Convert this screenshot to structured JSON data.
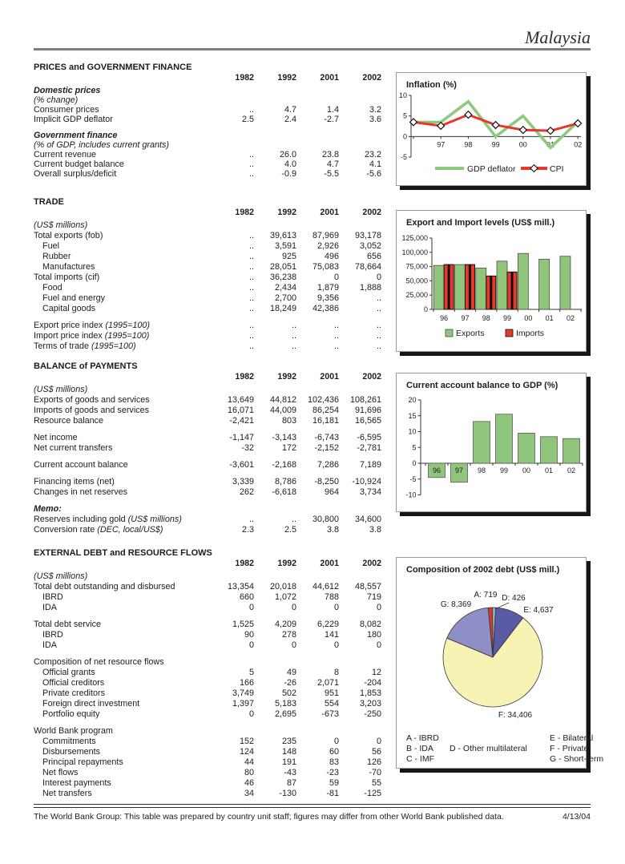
{
  "header": {
    "country": "Malaysia"
  },
  "years": [
    "1982",
    "1992",
    "2001",
    "2002"
  ],
  "sections": [
    {
      "title": "PRICES and GOVERNMENT FINANCE",
      "rows": [
        {
          "style": "group",
          "label": "Domestic prices"
        },
        {
          "style": "subnote",
          "label": "(% change)"
        },
        {
          "style": "row",
          "label": "Consumer prices",
          "values": [
            "..",
            "4.7",
            "1.4",
            "3.2"
          ]
        },
        {
          "style": "row",
          "label": "Implicit GDP deflator",
          "values": [
            "2.5",
            "2.4",
            "-2.7",
            "3.6"
          ]
        },
        {
          "style": "group",
          "label": "Government finance",
          "gap": true
        },
        {
          "style": "subnote",
          "label": "(% of GDP, includes current grants)"
        },
        {
          "style": "row",
          "label": "Current revenue",
          "values": [
            "..",
            "26.0",
            "23.8",
            "23.2"
          ]
        },
        {
          "style": "row",
          "label": "Current budget balance",
          "values": [
            "..",
            "4.0",
            "4.7",
            "4.1"
          ]
        },
        {
          "style": "row",
          "label": "Overall surplus/deficit",
          "values": [
            "..",
            "-0.9",
            "-5.5",
            "-5.6"
          ]
        }
      ]
    },
    {
      "title": "TRADE",
      "rows": [
        {
          "style": "subnote",
          "label": "(US$ millions)"
        },
        {
          "style": "row",
          "label": "Total exports (fob)",
          "values": [
            "..",
            "39,613",
            "87,969",
            "93,178"
          ]
        },
        {
          "style": "indent",
          "label": "Fuel",
          "values": [
            "..",
            "3,591",
            "2,926",
            "3,052"
          ]
        },
        {
          "style": "indent",
          "label": "Rubber",
          "values": [
            "..",
            "925",
            "496",
            "656"
          ]
        },
        {
          "style": "indent",
          "label": "Manufactures",
          "values": [
            "..",
            "28,051",
            "75,083",
            "78,664"
          ]
        },
        {
          "style": "row",
          "label": "Total imports (cif)",
          "values": [
            "..",
            "36,238",
            "0",
            "0"
          ]
        },
        {
          "style": "indent",
          "label": "Food",
          "values": [
            "..",
            "2,434",
            "1,879",
            "1,888"
          ]
        },
        {
          "style": "indent",
          "label": "Fuel and energy",
          "values": [
            "..",
            "2,700",
            "9,356",
            ".."
          ]
        },
        {
          "style": "indent",
          "label": "Capital goods",
          "values": [
            "..",
            "18,249",
            "42,386",
            ".."
          ]
        },
        {
          "style": "row",
          "label": "Export price index",
          "note": "(1995=100)",
          "values": [
            "..",
            "..",
            "..",
            ".."
          ],
          "gap": true
        },
        {
          "style": "row",
          "label": "Import price index",
          "note": "(1995=100)",
          "values": [
            "..",
            "..",
            "..",
            ".."
          ]
        },
        {
          "style": "row",
          "label": "Terms of trade",
          "note": "(1995=100)",
          "values": [
            "..",
            "..",
            "..",
            ".."
          ]
        }
      ]
    },
    {
      "title": "BALANCE of PAYMENTS",
      "rows": [
        {
          "style": "subnote",
          "label": "(US$ millions)"
        },
        {
          "style": "row",
          "label": "Exports of goods and services",
          "values": [
            "13,649",
            "44,812",
            "102,436",
            "108,261"
          ]
        },
        {
          "style": "row",
          "label": "Imports of goods and services",
          "values": [
            "16,071",
            "44,009",
            "86,254",
            "91,696"
          ]
        },
        {
          "style": "row",
          "label": "Resource balance",
          "values": [
            "-2,421",
            "803",
            "16,181",
            "16,565"
          ]
        },
        {
          "style": "row",
          "label": "Net income",
          "values": [
            "-1,147",
            "-3,143",
            "-6,743",
            "-6,595"
          ],
          "gap": true
        },
        {
          "style": "row",
          "label": "Net current transfers",
          "values": [
            "-32",
            "172",
            "-2,152",
            "-2,781"
          ]
        },
        {
          "style": "row",
          "label": "Current account balance",
          "values": [
            "-3,601",
            "-2,168",
            "7,286",
            "7,189"
          ],
          "gap": true
        },
        {
          "style": "row",
          "label": "Financing items (net)",
          "values": [
            "3,339",
            "8,786",
            "-8,250",
            "-10,924"
          ],
          "gap": true
        },
        {
          "style": "row",
          "label": "Changes in net reserves",
          "values": [
            "262",
            "-6,618",
            "964",
            "3,734"
          ]
        },
        {
          "style": "memo",
          "label": "Memo:",
          "gap": true
        },
        {
          "style": "row",
          "label": "Reserves including gold",
          "note": "(US$ millions)",
          "values": [
            "..",
            "..",
            "30,800",
            "34,600"
          ]
        },
        {
          "style": "row",
          "label": "Conversion rate",
          "note": "(DEC, local/US$)",
          "values": [
            "2.3",
            "2.5",
            "3.8",
            "3.8"
          ]
        }
      ]
    },
    {
      "title": "EXTERNAL DEBT and RESOURCE FLOWS",
      "rows": [
        {
          "style": "subnote",
          "label": "(US$ millions)"
        },
        {
          "style": "row",
          "label": "Total debt outstanding and disbursed",
          "values": [
            "13,354",
            "20,018",
            "44,612",
            "48,557"
          ]
        },
        {
          "style": "indent",
          "label": "IBRD",
          "values": [
            "660",
            "1,072",
            "788",
            "719"
          ]
        },
        {
          "style": "indent",
          "label": "IDA",
          "values": [
            "0",
            "0",
            "0",
            "0"
          ]
        },
        {
          "style": "row",
          "label": "Total debt service",
          "values": [
            "1,525",
            "4,209",
            "6,229",
            "8,082"
          ],
          "gap": true
        },
        {
          "style": "indent",
          "label": "IBRD",
          "values": [
            "90",
            "278",
            "141",
            "180"
          ]
        },
        {
          "style": "indent",
          "label": "IDA",
          "values": [
            "0",
            "0",
            "0",
            "0"
          ]
        },
        {
          "style": "row",
          "label": "Composition of net resource flows",
          "gap": true
        },
        {
          "style": "indent",
          "label": "Official grants",
          "values": [
            "5",
            "49",
            "8",
            "12"
          ]
        },
        {
          "style": "indent",
          "label": "Official creditors",
          "values": [
            "166",
            "-26",
            "2,071",
            "-204"
          ]
        },
        {
          "style": "indent",
          "label": "Private creditors",
          "values": [
            "3,749",
            "502",
            "951",
            "1,853"
          ]
        },
        {
          "style": "indent",
          "label": "Foreign direct investment",
          "values": [
            "1,397",
            "5,183",
            "554",
            "3,203"
          ]
        },
        {
          "style": "indent",
          "label": "Portfolio equity",
          "values": [
            "0",
            "2,695",
            "-673",
            "-250"
          ]
        },
        {
          "style": "row",
          "label": "World Bank program",
          "gap": true
        },
        {
          "style": "indent",
          "label": "Commitments",
          "values": [
            "152",
            "235",
            "0",
            "0"
          ]
        },
        {
          "style": "indent",
          "label": "Disbursements",
          "values": [
            "124",
            "148",
            "60",
            "56"
          ]
        },
        {
          "style": "indent",
          "label": "Principal repayments",
          "values": [
            "44",
            "191",
            "83",
            "126"
          ]
        },
        {
          "style": "indent",
          "label": "Net flows",
          "values": [
            "80",
            "-43",
            "-23",
            "-70"
          ]
        },
        {
          "style": "indent",
          "label": "Interest payments",
          "values": [
            "46",
            "87",
            "59",
            "55"
          ]
        },
        {
          "style": "indent",
          "label": "Net transfers",
          "values": [
            "34",
            "-130",
            "-81",
            "-125"
          ]
        }
      ]
    }
  ],
  "chart_data": [
    {
      "id": "inflation",
      "type": "line",
      "title": "Inflation (%)",
      "x_labels": [
        "",
        "97",
        "98",
        "99",
        "00",
        "01",
        "02"
      ],
      "ylim": [
        -5,
        10
      ],
      "yticks": [
        10,
        5,
        0,
        -5
      ],
      "grid": false,
      "legend_position": "bottom",
      "series": [
        {
          "name": "GDP deflator",
          "color": "#8CCB7B",
          "values": [
            3.5,
            3.5,
            8.5,
            0.0,
            5.0,
            -2.7,
            3.6
          ]
        },
        {
          "name": "CPI",
          "color": "#E6382D",
          "marker": "diamond",
          "values": [
            3.5,
            2.6,
            5.3,
            2.8,
            1.6,
            1.4,
            3.2
          ]
        }
      ]
    },
    {
      "id": "trade",
      "type": "bar",
      "title": "Export and Import levels (US$ mill.)",
      "categories": [
        "96",
        "97",
        "98",
        "99",
        "00",
        "01",
        "02"
      ],
      "ylim": [
        0,
        125000
      ],
      "ytick_labels": [
        "125,000",
        "100,000",
        "75,000",
        "50,000",
        "25,000",
        "0"
      ],
      "grid": false,
      "legend_position": "bottom",
      "series": [
        {
          "name": "Exports",
          "color": "#90C67C",
          "values": [
            77000,
            78500,
            72500,
            84500,
            98000,
            88000,
            93100
          ]
        },
        {
          "name": "Imports",
          "color": "#E6382D",
          "values": [
            78500,
            78500,
            58500,
            65500,
            null,
            null,
            null
          ]
        }
      ]
    },
    {
      "id": "cab",
      "type": "bar",
      "title": "Current account balance to GDP (%)",
      "categories": [
        "96",
        "97",
        "98",
        "99",
        "00",
        "01",
        "02"
      ],
      "ylim": [
        -10,
        20
      ],
      "yticks": [
        20,
        15,
        10,
        5,
        0,
        -5,
        -10
      ],
      "grid": false,
      "color": "#90C67C",
      "values": [
        -4.5,
        -6.0,
        13.2,
        15.5,
        9.5,
        8.4,
        7.8
      ]
    },
    {
      "id": "debt_pie",
      "type": "pie",
      "title": "Composition of 2002 debt (US$ mill.)",
      "slices": [
        {
          "key": "A",
          "value": 719,
          "label": "A: 719",
          "color": "#D43A30"
        },
        {
          "key": "D",
          "value": 426,
          "label": "D: 426",
          "color": "#A3D5DB"
        },
        {
          "key": "E",
          "value": 4637,
          "label": "E: 4,637",
          "color": "#5A5AA5"
        },
        {
          "key": "F",
          "value": 34406,
          "label": "F: 34,406",
          "color": "#F7F3B5"
        },
        {
          "key": "G",
          "value": 8369,
          "label": "G: 8,369",
          "color": "#8F8FC7"
        }
      ],
      "legend": [
        [
          "A - IBRD",
          "B - IDA",
          "C - IMF"
        ],
        [
          "D - Other multilateral"
        ],
        [
          "E - Bilateral",
          "F - Private",
          "G - Short-term"
        ]
      ]
    }
  ],
  "footer": {
    "note": "The World Bank Group: This table was prepared by country unit staff; figures may differ from other World Bank published data.",
    "date": "4/13/04"
  }
}
